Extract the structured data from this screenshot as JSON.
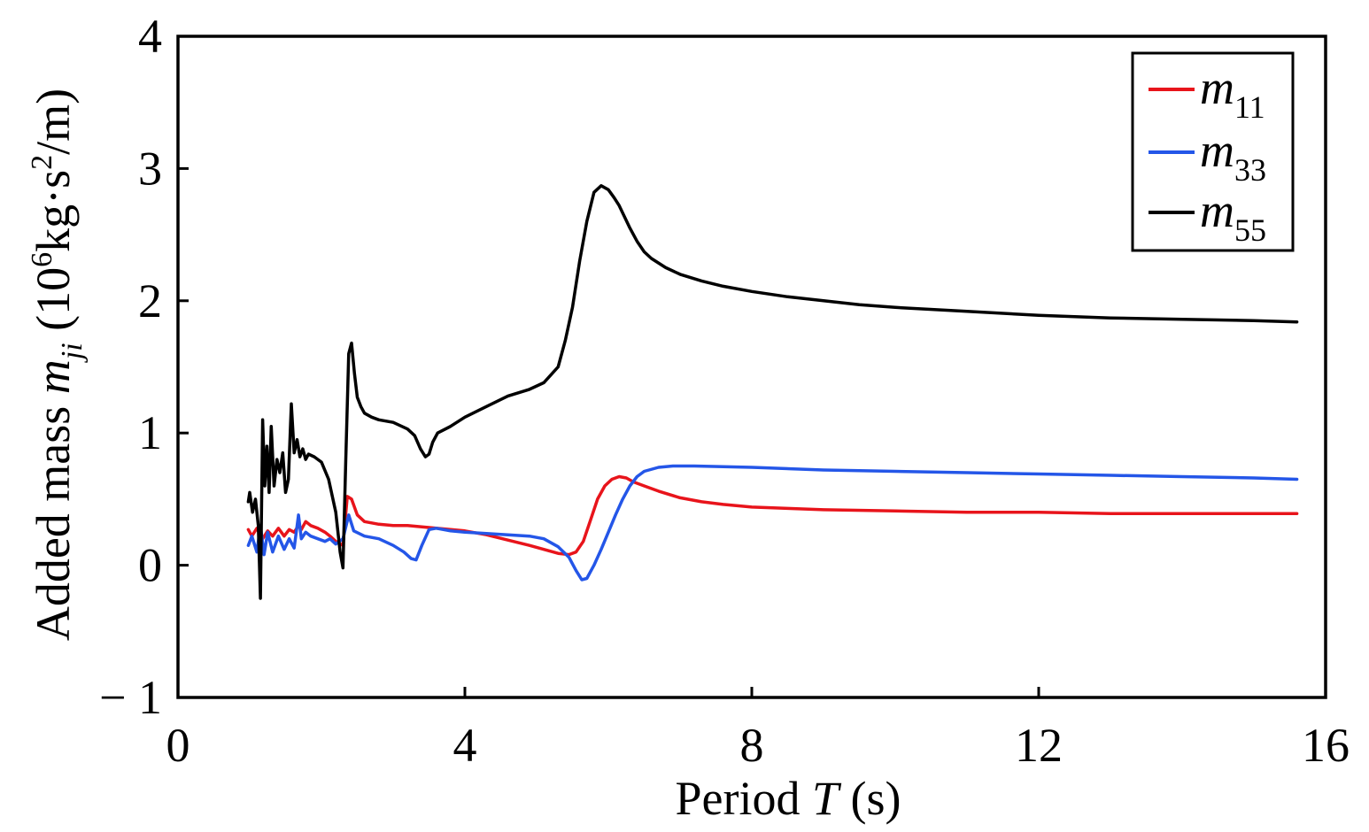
{
  "chart_data": {
    "type": "line",
    "xlabel": {
      "prefix": "Period ",
      "var": "T",
      "suffix": " (s)"
    },
    "ylabel": {
      "prefix": "Added mass ",
      "var": "m",
      "var_sub": "ji",
      "unit_open": " (10",
      "unit_exp1": "6",
      "unit_mid": "kg·s",
      "unit_exp2": "2",
      "unit_close": "/m)"
    },
    "xlim": [
      0,
      16
    ],
    "ylim": [
      -1,
      4
    ],
    "xticks": [
      0,
      4,
      8,
      12,
      16
    ],
    "xtick_labels": [
      "0",
      "4",
      "8",
      "12",
      "16"
    ],
    "yticks": [
      -1,
      0,
      1,
      2,
      3,
      4
    ],
    "ytick_labels": [
      "− 1",
      "0",
      "1",
      "2",
      "3",
      "4"
    ],
    "grid": false,
    "legend_position": "top-right",
    "series": [
      {
        "name": "m11",
        "label_main": "m",
        "label_sub": "11",
        "color": "#e8141b",
        "x": [
          0.98,
          1.03,
          1.1,
          1.18,
          1.25,
          1.32,
          1.4,
          1.48,
          1.55,
          1.62,
          1.68,
          1.72,
          1.78,
          1.85,
          1.95,
          2.05,
          2.12,
          2.2,
          2.3,
          2.36,
          2.42,
          2.5,
          2.6,
          2.8,
          3.0,
          3.2,
          3.4,
          3.6,
          3.8,
          4.0,
          4.3,
          4.6,
          4.9,
          5.1,
          5.3,
          5.45,
          5.55,
          5.65,
          5.75,
          5.85,
          5.95,
          6.05,
          6.15,
          6.25,
          6.35,
          6.5,
          6.7,
          7.0,
          7.3,
          7.6,
          8.0,
          8.5,
          9.0,
          10.0,
          11.0,
          12.0,
          13.0,
          14.0,
          15.0,
          15.6
        ],
        "y": [
          0.27,
          0.22,
          0.28,
          0.2,
          0.26,
          0.22,
          0.28,
          0.22,
          0.27,
          0.25,
          0.3,
          0.27,
          0.33,
          0.3,
          0.28,
          0.25,
          0.22,
          0.18,
          0.15,
          0.52,
          0.5,
          0.38,
          0.33,
          0.31,
          0.3,
          0.3,
          0.29,
          0.28,
          0.27,
          0.26,
          0.23,
          0.19,
          0.15,
          0.12,
          0.09,
          0.08,
          0.1,
          0.18,
          0.34,
          0.5,
          0.6,
          0.65,
          0.67,
          0.66,
          0.63,
          0.6,
          0.56,
          0.51,
          0.48,
          0.46,
          0.44,
          0.43,
          0.42,
          0.41,
          0.4,
          0.4,
          0.39,
          0.39,
          0.39,
          0.39
        ]
      },
      {
        "name": "m33",
        "label_main": "m",
        "label_sub": "33",
        "color": "#2456e8",
        "x": [
          0.98,
          1.03,
          1.1,
          1.15,
          1.2,
          1.25,
          1.32,
          1.4,
          1.48,
          1.55,
          1.62,
          1.68,
          1.72,
          1.78,
          1.85,
          1.95,
          2.05,
          2.12,
          2.2,
          2.3,
          2.38,
          2.45,
          2.6,
          2.8,
          3.0,
          3.15,
          3.25,
          3.32,
          3.4,
          3.5,
          3.6,
          3.8,
          4.0,
          4.3,
          4.6,
          4.9,
          5.1,
          5.3,
          5.45,
          5.55,
          5.63,
          5.7,
          5.8,
          5.9,
          6.0,
          6.1,
          6.2,
          6.3,
          6.4,
          6.5,
          6.7,
          6.9,
          7.2,
          8.0,
          9.0,
          10.0,
          11.0,
          12.0,
          13.0,
          14.0,
          15.0,
          15.6
        ],
        "y": [
          0.15,
          0.22,
          0.1,
          0.3,
          0.08,
          0.25,
          0.1,
          0.22,
          0.12,
          0.2,
          0.13,
          0.38,
          0.2,
          0.25,
          0.22,
          0.2,
          0.18,
          0.2,
          0.16,
          0.2,
          0.38,
          0.26,
          0.22,
          0.2,
          0.15,
          0.1,
          0.05,
          0.04,
          0.15,
          0.27,
          0.28,
          0.26,
          0.25,
          0.24,
          0.23,
          0.22,
          0.2,
          0.14,
          0.06,
          -0.04,
          -0.11,
          -0.1,
          0.0,
          0.12,
          0.25,
          0.38,
          0.5,
          0.6,
          0.67,
          0.71,
          0.74,
          0.75,
          0.75,
          0.74,
          0.72,
          0.71,
          0.7,
          0.69,
          0.68,
          0.67,
          0.66,
          0.65
        ]
      },
      {
        "name": "m55",
        "label_main": "m",
        "label_sub": "55",
        "color": "#000000",
        "x": [
          0.98,
          1.0,
          1.04,
          1.08,
          1.12,
          1.15,
          1.18,
          1.21,
          1.24,
          1.27,
          1.3,
          1.34,
          1.38,
          1.42,
          1.46,
          1.5,
          1.54,
          1.58,
          1.62,
          1.66,
          1.7,
          1.74,
          1.78,
          1.82,
          1.9,
          2.0,
          2.1,
          2.2,
          2.26,
          2.3,
          2.34,
          2.38,
          2.42,
          2.46,
          2.5,
          2.55,
          2.6,
          2.7,
          2.8,
          3.0,
          3.2,
          3.3,
          3.38,
          3.45,
          3.5,
          3.55,
          3.62,
          3.8,
          4.0,
          4.3,
          4.6,
          4.9,
          5.1,
          5.3,
          5.4,
          5.5,
          5.6,
          5.7,
          5.8,
          5.9,
          6.0,
          6.08,
          6.15,
          6.3,
          6.4,
          6.5,
          6.6,
          6.8,
          7.0,
          7.3,
          7.6,
          8.0,
          8.5,
          9.0,
          9.5,
          10.0,
          11.0,
          12.0,
          13.0,
          14.0,
          15.0,
          15.6
        ],
        "y": [
          0.48,
          0.55,
          0.4,
          0.5,
          0.3,
          -0.25,
          1.1,
          0.6,
          0.9,
          0.55,
          1.05,
          0.6,
          0.8,
          0.7,
          0.85,
          0.55,
          0.65,
          1.22,
          0.85,
          0.95,
          0.82,
          0.88,
          0.8,
          0.84,
          0.82,
          0.78,
          0.65,
          0.4,
          0.1,
          -0.02,
          0.8,
          1.6,
          1.68,
          1.45,
          1.27,
          1.2,
          1.15,
          1.12,
          1.1,
          1.08,
          1.03,
          0.98,
          0.88,
          0.82,
          0.84,
          0.93,
          1.0,
          1.05,
          1.12,
          1.2,
          1.28,
          1.33,
          1.38,
          1.5,
          1.7,
          1.95,
          2.3,
          2.6,
          2.82,
          2.87,
          2.84,
          2.78,
          2.72,
          2.55,
          2.45,
          2.37,
          2.32,
          2.25,
          2.2,
          2.15,
          2.11,
          2.07,
          2.03,
          2.0,
          1.97,
          1.95,
          1.92,
          1.89,
          1.87,
          1.86,
          1.85,
          1.84
        ]
      }
    ]
  }
}
